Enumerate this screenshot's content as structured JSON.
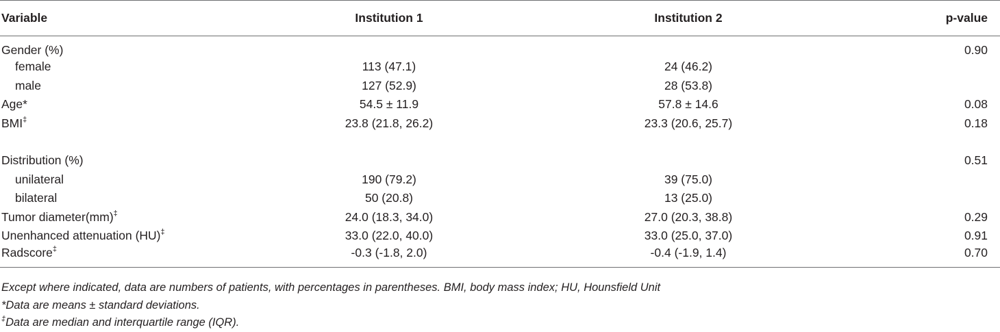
{
  "table": {
    "headers": {
      "variable": "Variable",
      "institution1": "Institution 1",
      "institution2": "Institution 2",
      "pvalue": "p-value"
    },
    "rows": [
      {
        "label": "Gender (%)",
        "marker": "",
        "i1": "",
        "i2": "",
        "p": "0.90"
      },
      {
        "label": "female",
        "marker": "",
        "i1": "113 (47.1)",
        "i2": "24 (46.2)",
        "p": ""
      },
      {
        "label": "male",
        "marker": "",
        "i1": "127 (52.9)",
        "i2": "28 (53.8)",
        "p": ""
      },
      {
        "label": "Age*",
        "marker": "",
        "i1": "54.5 ± 11.9",
        "i2": "57.8 ± 14.6",
        "p": "0.08"
      },
      {
        "label": "BMI",
        "marker": "‡",
        "i1": "23.8 (21.8, 26.2)",
        "i2": "23.3 (20.6, 25.7)",
        "p": "0.18"
      },
      {
        "label": "Distribution (%)",
        "marker": "",
        "i1": "",
        "i2": "",
        "p": "0.51"
      },
      {
        "label": "unilateral",
        "marker": "",
        "i1": "190 (79.2)",
        "i2": "39 (75.0)",
        "p": ""
      },
      {
        "label": "bilateral",
        "marker": "",
        "i1": "50 (20.8)",
        "i2": "13 (25.0)",
        "p": ""
      },
      {
        "label": "Tumor diameter(mm)",
        "marker": "‡",
        "i1": "24.0 (18.3, 34.0)",
        "i2": "27.0 (20.3, 38.8)",
        "p": "0.29"
      },
      {
        "label": "Unenhanced attenuation (HU)",
        "marker": "‡",
        "i1": "33.0 (22.0, 40.0)",
        "i2": "33.0 (25.0, 37.0)",
        "p": "0.91"
      },
      {
        "label": "Radscore",
        "marker": "‡",
        "i1": "-0.3 (-1.8, 2.0)",
        "i2": "-0.4 (-1.9, 1.4)",
        "p": "0.70"
      }
    ]
  },
  "footnotes": {
    "general": "Except where indicated, data are numbers of patients, with percentages in parentheses. BMI, body mass index; HU, Hounsfield Unit",
    "asterisk": "*Data are means ± standard deviations.",
    "dagger_marker": "‡",
    "dagger_text": "Data are median and interquartile range (IQR)."
  }
}
